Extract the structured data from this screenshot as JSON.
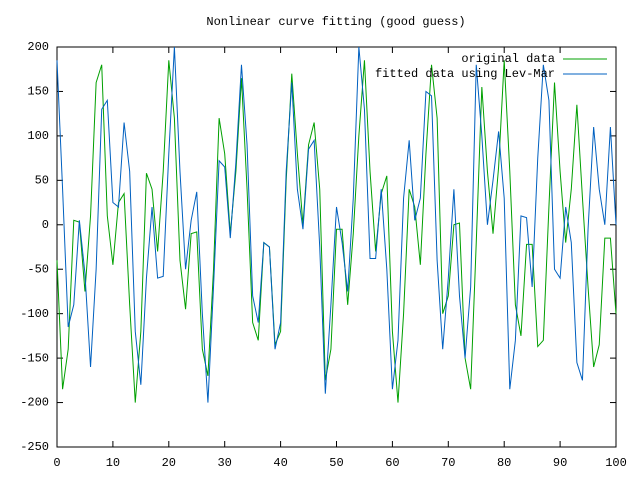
{
  "chart_data": {
    "type": "line",
    "title": "Nonlinear curve fitting (good guess)",
    "x": [
      0,
      1,
      2,
      3,
      4,
      5,
      6,
      7,
      8,
      9,
      10,
      11,
      12,
      13,
      14,
      15,
      16,
      17,
      18,
      19,
      20,
      21,
      22,
      23,
      24,
      25,
      26,
      27,
      28,
      29,
      30,
      31,
      32,
      33,
      34,
      35,
      36,
      37,
      38,
      39,
      40,
      41,
      42,
      43,
      44,
      45,
      46,
      47,
      48,
      49,
      50,
      51,
      52,
      53,
      54,
      55,
      56,
      57,
      58,
      59,
      60,
      61,
      62,
      63,
      64,
      65,
      66,
      67,
      68,
      69,
      70,
      71,
      72,
      73,
      74,
      75,
      76,
      77,
      78,
      79,
      80,
      81,
      82,
      83,
      84,
      85,
      86,
      87,
      88,
      89,
      90,
      91,
      92,
      93,
      94,
      95,
      96,
      97,
      98,
      99,
      100
    ],
    "series": [
      {
        "name": "original data",
        "color": "#00a000",
        "values": [
          -40,
          -185,
          -140,
          5,
          3,
          -75,
          10,
          160,
          180,
          10,
          -45,
          25,
          35,
          -90,
          -200,
          -120,
          58,
          40,
          -30,
          60,
          185,
          120,
          -40,
          -95,
          -10,
          -8,
          -140,
          -170,
          -50,
          120,
          80,
          -10,
          60,
          165,
          40,
          -110,
          -130,
          -20,
          -25,
          -135,
          -120,
          50,
          170,
          80,
          0,
          90,
          115,
          40,
          -175,
          -140,
          -5,
          -5,
          -90,
          -10,
          100,
          185,
          60,
          -30,
          35,
          55,
          -120,
          -200,
          -100,
          40,
          20,
          -45,
          80,
          180,
          120,
          -100,
          -80,
          0,
          2,
          -150,
          -185,
          -20,
          155,
          60,
          -10,
          65,
          185,
          60,
          -90,
          -125,
          -22,
          -22,
          -137,
          -130,
          20,
          160,
          60,
          -20,
          40,
          135,
          30,
          -70,
          -160,
          -135,
          -15,
          -15,
          -100
        ]
      },
      {
        "name": "fitted data using Lev-Mar",
        "color": "#0060c0",
        "values": [
          185,
          40,
          -115,
          -90,
          5,
          -55,
          -160,
          -50,
          130,
          140,
          25,
          20,
          115,
          60,
          -120,
          -180,
          -60,
          20,
          -60,
          -58,
          80,
          200,
          60,
          -50,
          5,
          37,
          -100,
          -200,
          -70,
          72,
          65,
          -15,
          70,
          180,
          90,
          -80,
          -110,
          -20,
          -25,
          -140,
          -110,
          60,
          160,
          40,
          -5,
          85,
          95,
          -25,
          -190,
          -90,
          20,
          -20,
          -75,
          30,
          200,
          130,
          -38,
          -38,
          40,
          -50,
          -185,
          -130,
          30,
          95,
          5,
          30,
          150,
          145,
          -40,
          -140,
          -60,
          40,
          -80,
          -150,
          -70,
          180,
          100,
          0,
          50,
          105,
          30,
          -185,
          -130,
          10,
          8,
          -70,
          75,
          180,
          140,
          -50,
          -60,
          20,
          -20,
          -155,
          -175,
          -5,
          110,
          40,
          0,
          110,
          0
        ]
      }
    ],
    "xlim": [
      0,
      100
    ],
    "xticks": [
      0,
      10,
      20,
      30,
      40,
      50,
      60,
      70,
      80,
      90,
      100
    ],
    "ylim": [
      -250,
      200
    ],
    "yticks": [
      -250,
      -200,
      -150,
      -100,
      -50,
      0,
      50,
      100,
      150,
      200
    ],
    "legend": "top-right"
  }
}
